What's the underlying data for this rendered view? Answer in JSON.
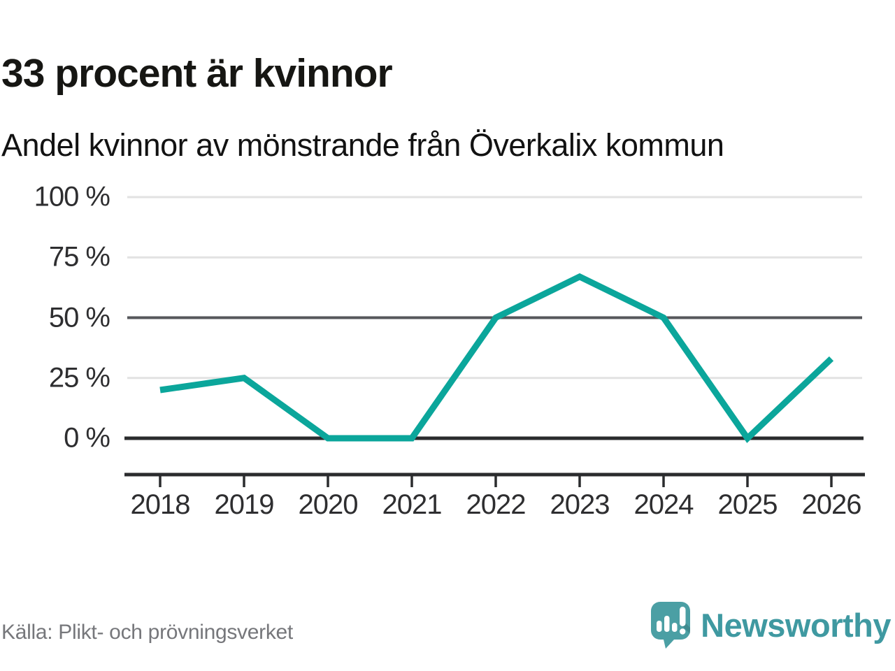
{
  "header": {
    "title": "33 procent är kvinnor",
    "subtitle": "Andel kvinnor av mönstrande från Överkalix kommun"
  },
  "chart_data": {
    "type": "line",
    "title": "33 procent är kvinnor",
    "subtitle": "Andel kvinnor av mönstrande från Överkalix kommun",
    "categories": [
      "2018",
      "2019",
      "2020",
      "2021",
      "2022",
      "2023",
      "2024",
      "2025",
      "2026"
    ],
    "series": [
      {
        "name": "Andel kvinnor av mönstrande",
        "values": [
          20,
          25,
          0,
          0,
          50,
          67,
          50,
          0,
          33
        ]
      }
    ],
    "unit": "%",
    "xlabel": "",
    "ylabel": "",
    "ylim": [
      0,
      100
    ],
    "y_ticks": [
      {
        "value": 100,
        "label": "100 %"
      },
      {
        "value": 75,
        "label": "75 %"
      },
      {
        "value": 50,
        "label": "50 %"
      },
      {
        "value": 25,
        "label": "25 %"
      },
      {
        "value": 0,
        "label": "0 %"
      }
    ],
    "grid": "horizontal",
    "legend_position": "none"
  },
  "footer": {
    "source": "Källa: Plikt- och prövningsverket",
    "brand": "Newsworthy"
  },
  "icons": {
    "brand_logo": "newsworthy-speech-bubble-bar-chart-icon"
  },
  "colors": {
    "accent_line": "#0ba69b",
    "grid_light": "#e2e2e2",
    "grid_mid": "#56575b",
    "axis_dark": "#2b2c2e",
    "logo_teal": "#4b9fa4",
    "logo_shadow": "rgba(23,62,66,0.22)",
    "brand_text": "#3f99a1",
    "source_text": "#76777b",
    "title_text": "#161613"
  }
}
